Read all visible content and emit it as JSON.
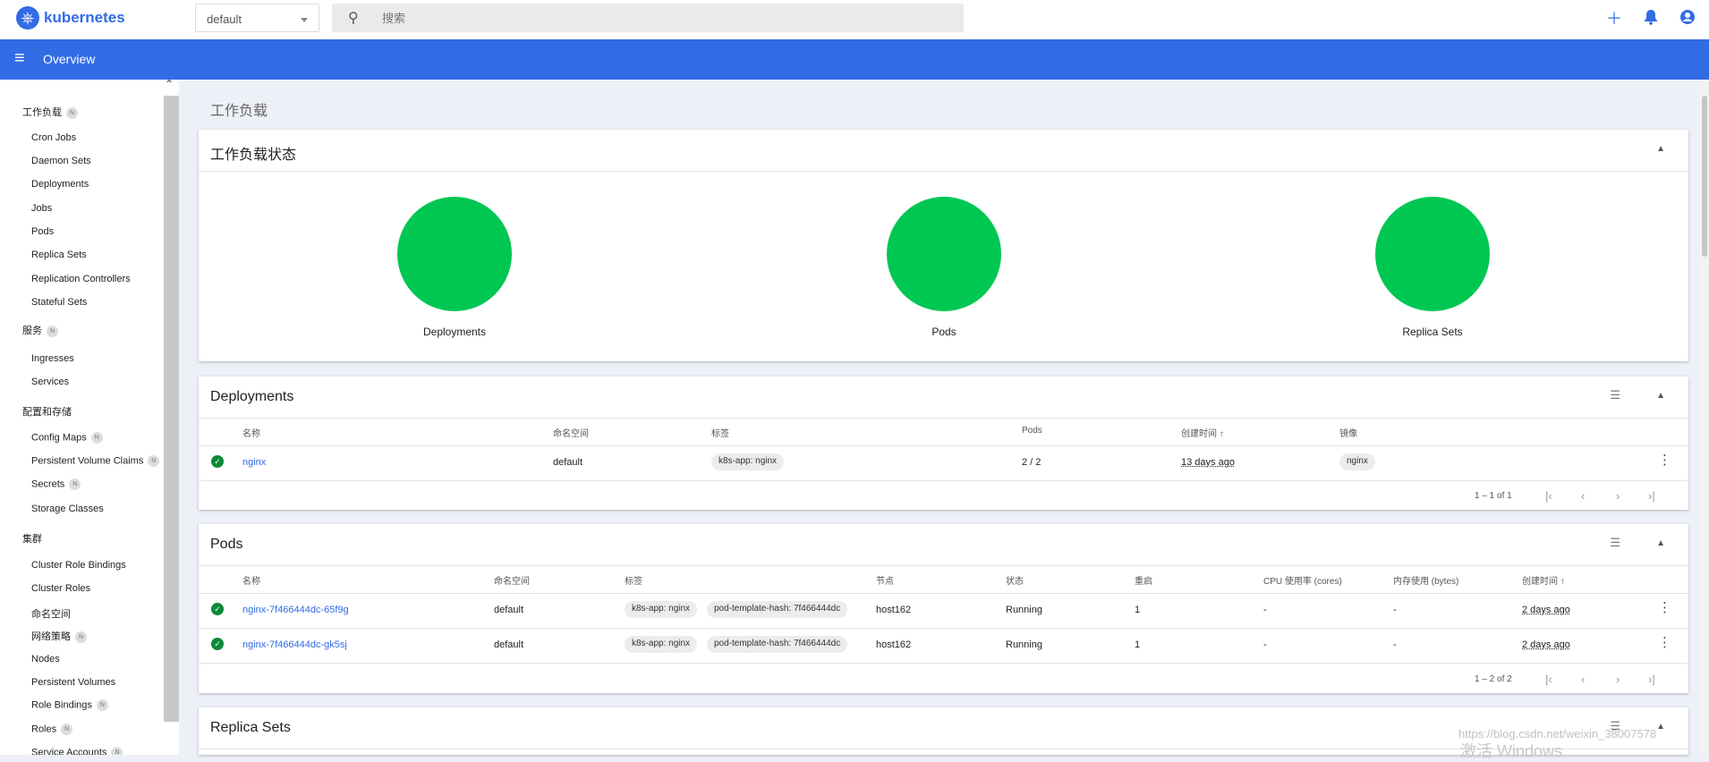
{
  "header": {
    "logo_text": "kubernetes",
    "namespace": "default",
    "search_placeholder": "搜索",
    "overview_title": "Overview"
  },
  "sidebar": {
    "sections": [
      {
        "label": "工作负载",
        "badge": "N"
      },
      {
        "label": "服务",
        "badge": "N"
      },
      {
        "label": "配置和存储",
        "badge": ""
      },
      {
        "label": "集群",
        "badge": ""
      }
    ],
    "workload_items": [
      "Cron Jobs",
      "Daemon Sets",
      "Deployments",
      "Jobs",
      "Pods",
      "Replica Sets",
      "Replication Controllers",
      "Stateful Sets"
    ],
    "service_items": [
      "Ingresses",
      "Services"
    ],
    "config_items": [
      {
        "label": "Config Maps",
        "badge": "N"
      },
      {
        "label": "Persistent Volume Claims",
        "badge": "N"
      },
      {
        "label": "Secrets",
        "badge": "N"
      },
      {
        "label": "Storage Classes",
        "badge": ""
      }
    ],
    "cluster_items": [
      {
        "label": "Cluster Role Bindings",
        "badge": ""
      },
      {
        "label": "Cluster Roles",
        "badge": ""
      },
      {
        "label": "命名空间",
        "badge": ""
      },
      {
        "label": "网络策略",
        "badge": "N"
      },
      {
        "label": "Nodes",
        "badge": ""
      },
      {
        "label": "Persistent Volumes",
        "badge": ""
      },
      {
        "label": "Role Bindings",
        "badge": "N"
      },
      {
        "label": "Roles",
        "badge": "N"
      },
      {
        "label": "Service Accounts",
        "badge": "N"
      }
    ]
  },
  "main": {
    "page_heading": "工作负载",
    "status_card": {
      "title": "工作负载状态",
      "items": [
        {
          "label": "Deployments",
          "color": "#00c752"
        },
        {
          "label": "Pods",
          "color": "#00c752"
        },
        {
          "label": "Replica Sets",
          "color": "#00c752"
        }
      ]
    },
    "deployments": {
      "title": "Deployments",
      "headers": [
        "名称",
        "命名空间",
        "标签",
        "Pods",
        "创建时间 ↑",
        "镜像"
      ],
      "rows": [
        {
          "name": "nginx",
          "namespace": "default",
          "labels": [
            "k8s-app: nginx"
          ],
          "pods": "2 / 2",
          "created": "13 days ago",
          "images": [
            "nginx"
          ]
        }
      ],
      "pager": "1 – 1 of 1"
    },
    "pods": {
      "title": "Pods",
      "headers": [
        "名称",
        "命名空间",
        "标签",
        "节点",
        "状态",
        "重启",
        "CPU 使用率 (cores)",
        "内存使用 (bytes)",
        "创建时间 ↑"
      ],
      "rows": [
        {
          "name": "nginx-7f466444dc-65f9g",
          "namespace": "default",
          "labels": [
            "k8s-app: nginx",
            "pod-template-hash: 7f466444dc"
          ],
          "node": "host162",
          "status": "Running",
          "restarts": "1",
          "cpu": "-",
          "memory": "-",
          "created": "2 days ago"
        },
        {
          "name": "nginx-7f466444dc-gk5sj",
          "namespace": "default",
          "labels": [
            "k8s-app: nginx",
            "pod-template-hash: 7f466444dc"
          ],
          "node": "host162",
          "status": "Running",
          "restarts": "1",
          "cpu": "-",
          "memory": "-",
          "created": "2 days ago"
        }
      ],
      "pager": "1 – 2 of 2"
    },
    "replica_sets": {
      "title": "Replica Sets"
    }
  },
  "watermark": {
    "line1": "https://blog.csdn.net/weixin_38007578",
    "line2": "激活 Windows"
  }
}
